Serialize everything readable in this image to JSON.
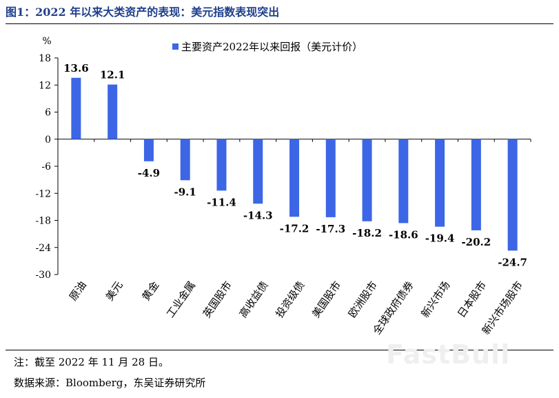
{
  "header": {
    "title": "图1：2022 年以来大类资产的表现：美元指数表现突出"
  },
  "footer": {
    "note": "注：截至 2022 年 11 月 28 日。",
    "source": "数据来源：Bloomberg，东吴证券研究所"
  },
  "watermark": "FastBull",
  "colors": {
    "bar": "#3c66e6",
    "axis": "#000000"
  },
  "chart_data": {
    "type": "bar",
    "unit_label": "%",
    "categories": [
      "原油",
      "美元",
      "黄金",
      "工业金属",
      "英国股市",
      "高收益债",
      "投资级债",
      "美国股市",
      "欧洲股市",
      "全球政府债券",
      "新兴市场",
      "日本股市",
      "新兴市场股市"
    ],
    "series": [
      {
        "name": "主要资产2022年以来回报（美元计价）",
        "values": [
          13.6,
          12.1,
          -4.9,
          -9.1,
          -11.4,
          -14.3,
          -17.2,
          -17.3,
          -18.2,
          -18.6,
          -19.4,
          -20.2,
          -24.7
        ]
      }
    ],
    "value_labels": [
      "13.6",
      "12.1",
      "-4.9",
      "-9.1",
      "-11.4",
      "-14.3",
      "-17.2",
      "-17.3",
      "-18.2",
      "-18.6",
      "-19.4",
      "-20.2",
      "-24.7"
    ],
    "y_ticks": [
      "18",
      "12",
      "6",
      "0",
      "-6",
      "-12",
      "-18",
      "-24",
      "-30"
    ],
    "ylim": [
      -30,
      18
    ],
    "legend_position": "top-right",
    "grid": false
  }
}
